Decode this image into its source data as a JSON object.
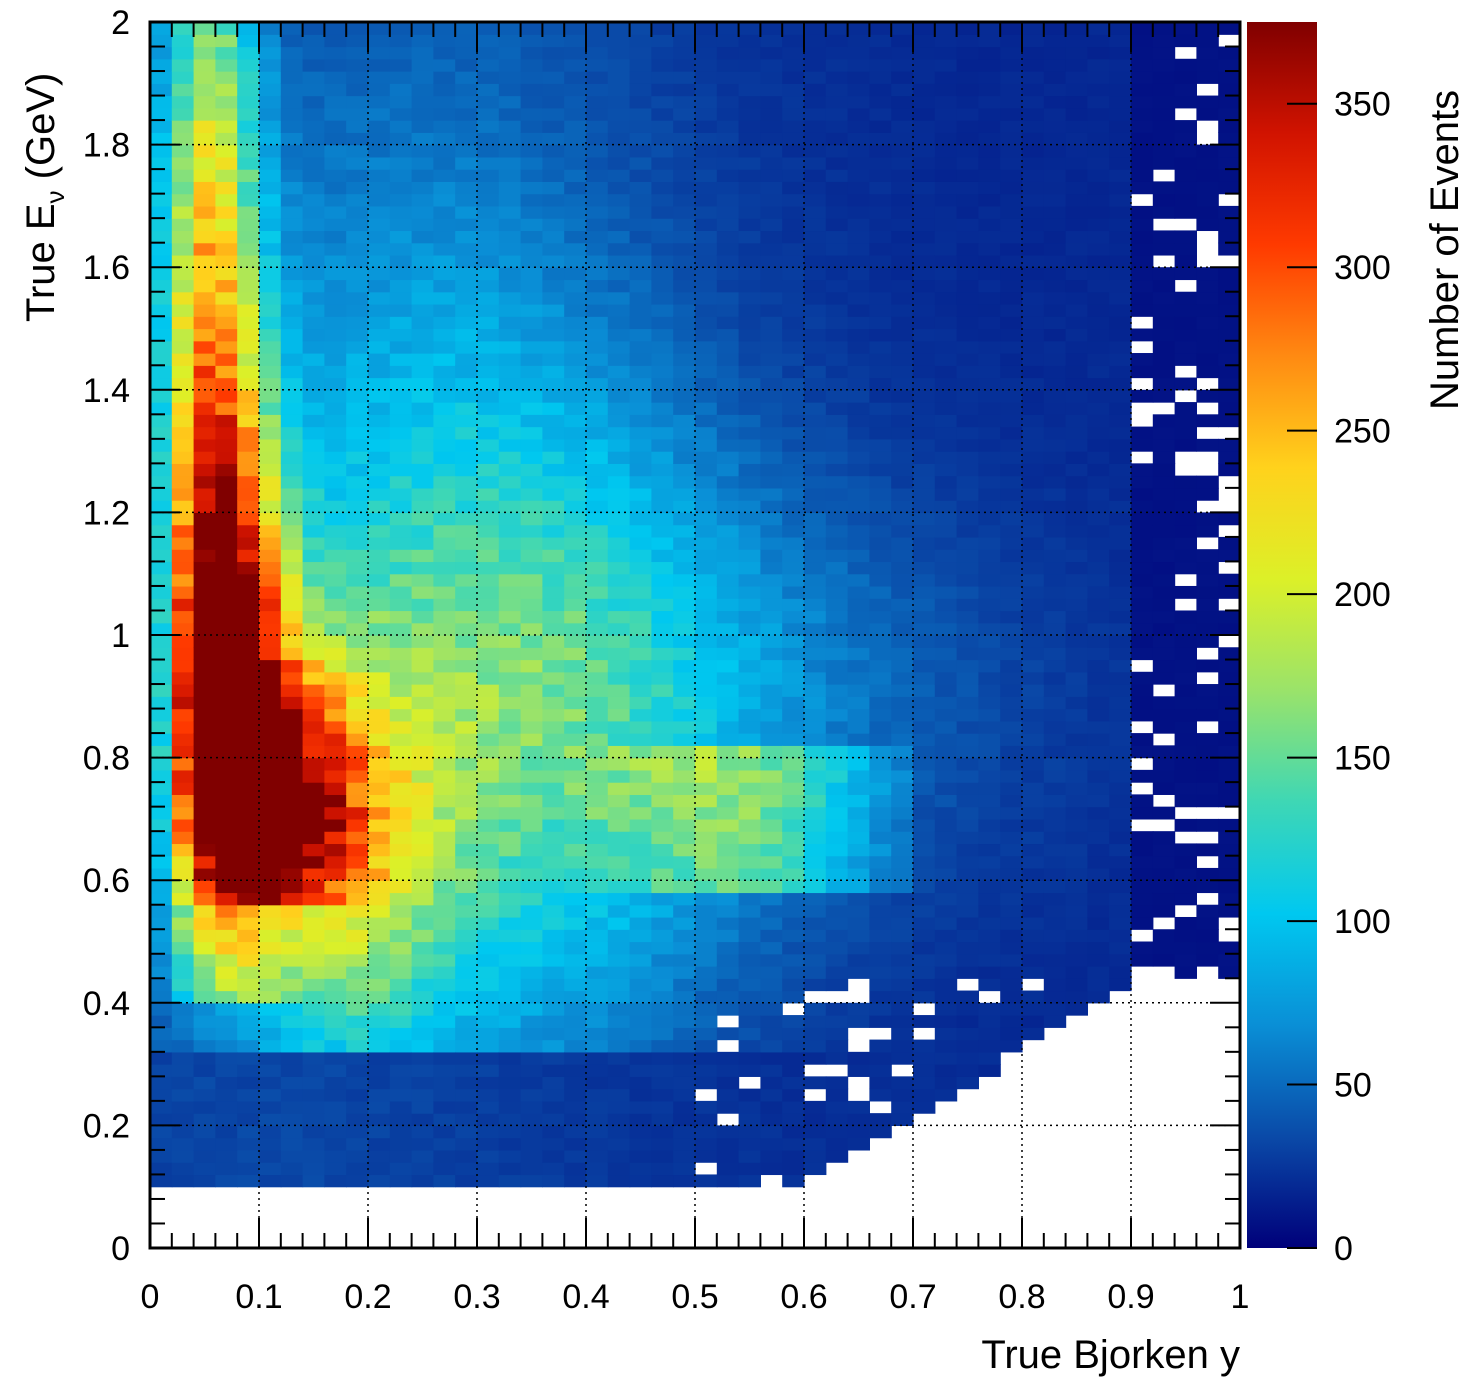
{
  "chart_data": {
    "type": "heatmap",
    "title": "",
    "xlabel": "True Bjorken y",
    "ylabel": {
      "main": "True E",
      "subscript": "ν",
      "unit": " (GeV)"
    },
    "xlim": [
      0,
      1
    ],
    "ylim": [
      0,
      2
    ],
    "x_ticks": [
      "0",
      "0.1",
      "0.2",
      "0.3",
      "0.4",
      "0.5",
      "0.6",
      "0.7",
      "0.8",
      "0.9",
      "1"
    ],
    "y_ticks": [
      "0",
      "0.2",
      "0.4",
      "0.6",
      "0.8",
      "1",
      "1.2",
      "1.4",
      "1.6",
      "1.8",
      "2"
    ],
    "grid": true,
    "bins": {
      "x": 50,
      "y": 100
    },
    "colorbar": {
      "label": "Number of Events",
      "range": [
        0,
        375
      ],
      "ticks": [
        "0",
        "50",
        "100",
        "150",
        "200",
        "250",
        "300",
        "350"
      ],
      "colors": [
        "#00007a",
        "#0a4aa8",
        "#0a8fd6",
        "#00c8f0",
        "#3ed7b5",
        "#9ae36a",
        "#dcf028",
        "#ffd21c",
        "#ff8a12",
        "#ff3a00",
        "#d11300",
        "#800000"
      ]
    },
    "structure": {
      "empty_below_energy_GeV": 0.1,
      "low_energy_band": {
        "E_range": [
          0.1,
          0.3
        ],
        "approx_events": 20
      },
      "peak": {
        "y": 0.07,
        "E": 0.9,
        "events": 360
      },
      "ridge": {
        "y_range": [
          0.04,
          0.16
        ],
        "E_range": [
          0.6,
          1.35
        ],
        "events_range": [
          220,
          360
        ]
      },
      "secondary_lobe": {
        "y_range": [
          0.45,
          0.65
        ],
        "E_range": [
          0.6,
          0.8
        ],
        "events_range": [
          110,
          140
        ]
      },
      "sparse_high_y_region": {
        "y_range": [
          0.9,
          1.0
        ],
        "events": "0-15"
      }
    }
  }
}
